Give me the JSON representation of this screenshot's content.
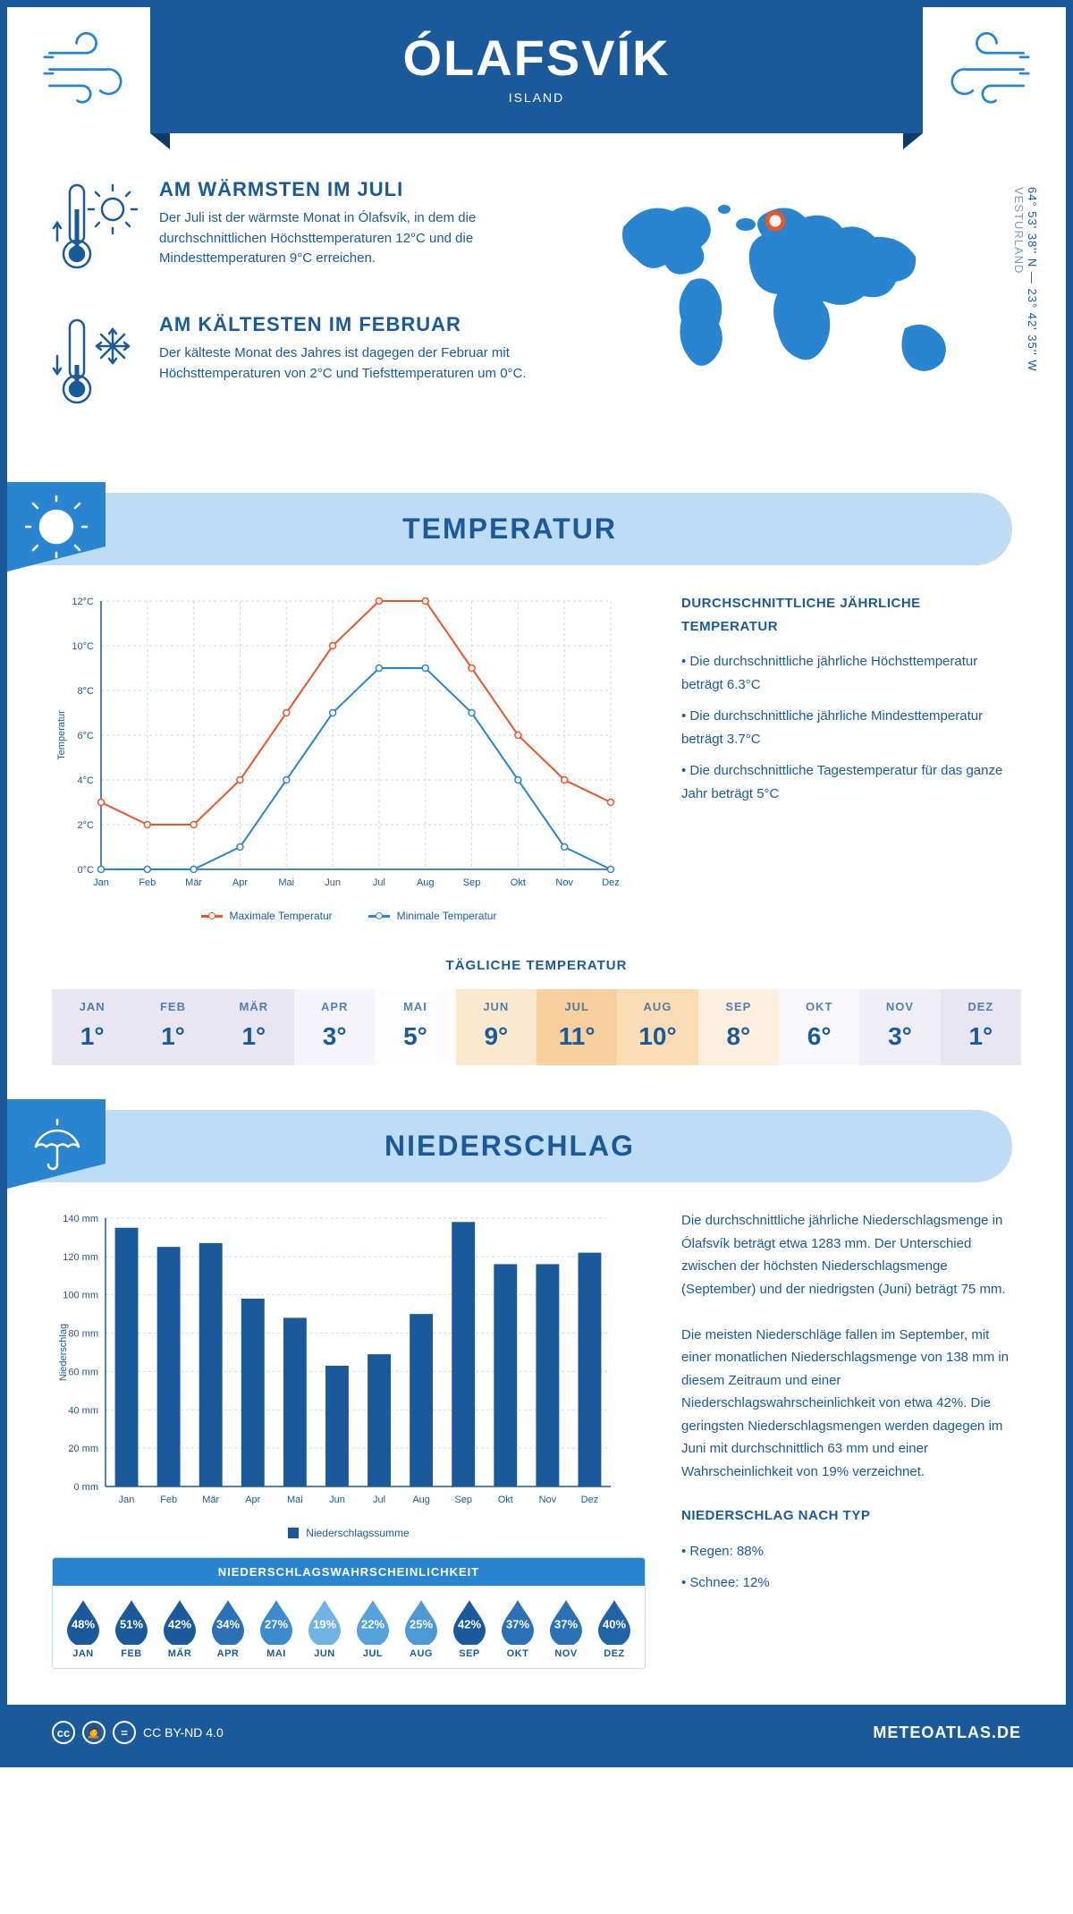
{
  "header": {
    "title": "ÓLAFSVÍK",
    "subtitle": "ISLAND"
  },
  "coords": {
    "lat": "64° 53' 38'' N",
    "lon": "23° 42' 35'' W",
    "region": "VESTURLAND"
  },
  "intro": {
    "warm": {
      "title": "AM WÄRMSTEN IM JULI",
      "text": "Der Juli ist der wärmste Monat in Ólafsvík, in dem die durchschnittlichen Höchsttemperaturen 12°C und die Mindesttemperaturen 9°C erreichen."
    },
    "cold": {
      "title": "AM KÄLTESTEN IM FEBRUAR",
      "text": "Der kälteste Monat des Jahres ist dagegen der Februar mit Höchsttemperaturen von 2°C und Tiefsttemperaturen um 0°C."
    }
  },
  "months": [
    "Jan",
    "Feb",
    "Mär",
    "Apr",
    "Mai",
    "Jun",
    "Jul",
    "Aug",
    "Sep",
    "Okt",
    "Nov",
    "Dez"
  ],
  "months_upper": [
    "JAN",
    "FEB",
    "MÄR",
    "APR",
    "MAI",
    "JUN",
    "JUL",
    "AUG",
    "SEP",
    "OKT",
    "NOV",
    "DEZ"
  ],
  "temperature": {
    "section_title": "TEMPERATUR",
    "chart": {
      "type": "line",
      "ylabel": "Temperatur",
      "ylim": [
        0,
        12
      ],
      "ytick_step": 2,
      "ytick_suffix": "°C",
      "series": [
        {
          "name": "Maximale Temperatur",
          "color": "#e8562a",
          "values": [
            3,
            2,
            2,
            4,
            7,
            10,
            12,
            12,
            9,
            6,
            4,
            3
          ]
        },
        {
          "name": "Minimale Temperatur",
          "color": "#2a85d0",
          "values": [
            0,
            0,
            0,
            1,
            4,
            7,
            9,
            9,
            7,
            4,
            1,
            0
          ]
        }
      ],
      "grid_color": "#c9d9eb",
      "axis_color": "#1b5a9a",
      "background": "#ffffff",
      "line_width": 2,
      "marker": "circle"
    },
    "info": {
      "heading": "DURCHSCHNITTLICHE JÄHRLICHE TEMPERATUR",
      "bullets": [
        "Die durchschnittliche jährliche Höchsttemperatur beträgt 6.3°C",
        "Die durchschnittliche jährliche Mindesttemperatur beträgt 3.7°C",
        "Die durchschnittliche Tagestemperatur für das ganze Jahr beträgt 5°C"
      ]
    },
    "daily": {
      "heading": "TÄGLICHE TEMPERATUR",
      "values": [
        "1°",
        "1°",
        "1°",
        "3°",
        "5°",
        "9°",
        "11°",
        "10°",
        "8°",
        "6°",
        "3°",
        "1°"
      ],
      "cell_colors": [
        "#e8e6f2",
        "#e8e6f2",
        "#e8e6f2",
        "#f5f4fa",
        "#fdfcff",
        "#fbe9cf",
        "#f8cf9e",
        "#fadcb5",
        "#fcefdd",
        "#f8f7fc",
        "#f0eef7",
        "#e8e6f2"
      ]
    }
  },
  "precipitation": {
    "section_title": "NIEDERSCHLAG",
    "chart": {
      "type": "bar",
      "ylabel": "Niederschlag",
      "ylim": [
        0,
        140
      ],
      "ytick_step": 20,
      "ytick_suffix": " mm",
      "values": [
        135,
        125,
        127,
        98,
        88,
        63,
        69,
        90,
        138,
        116,
        116,
        122
      ],
      "bar_color": "#1b5a9a",
      "grid_color": "#c9d9eb",
      "axis_color": "#1b5a9a",
      "legend": "Niederschlagssumme"
    },
    "text": "Die durchschnittliche jährliche Niederschlagsmenge in Ólafsvík beträgt etwa 1283 mm. Der Unterschied zwischen der höchsten Niederschlagsmenge (September) und der niedrigsten (Juni) beträgt 75 mm.\n\nDie meisten Niederschläge fallen im September, mit einer monatlichen Niederschlagsmenge von 138 mm in diesem Zeitraum und einer Niederschlagswahrscheinlichkeit von etwa 42%. Die geringsten Niederschlagsmengen werden dagegen im Juni mit durchschnittlich 63 mm und einer Wahrscheinlichkeit von 19% verzeichnet.",
    "by_type": {
      "heading": "NIEDERSCHLAG NACH TYP",
      "items": [
        "Regen: 88%",
        "Schnee: 12%"
      ]
    },
    "probability": {
      "heading": "NIEDERSCHLAGSWAHRSCHEINLICHKEIT",
      "values": [
        "48%",
        "51%",
        "42%",
        "34%",
        "27%",
        "19%",
        "22%",
        "25%",
        "42%",
        "37%",
        "37%",
        "40%"
      ],
      "colors": [
        "#1b5a9a",
        "#1b5a9a",
        "#1b5a9a",
        "#2a72b5",
        "#3b8bce",
        "#6fb4e3",
        "#56a3db",
        "#4c99d4",
        "#1b5a9a",
        "#2a72b5",
        "#2a72b5",
        "#1f64a6"
      ]
    }
  },
  "footer": {
    "license": "CC BY-ND 4.0",
    "brand": "METEOATLAS.DE"
  }
}
